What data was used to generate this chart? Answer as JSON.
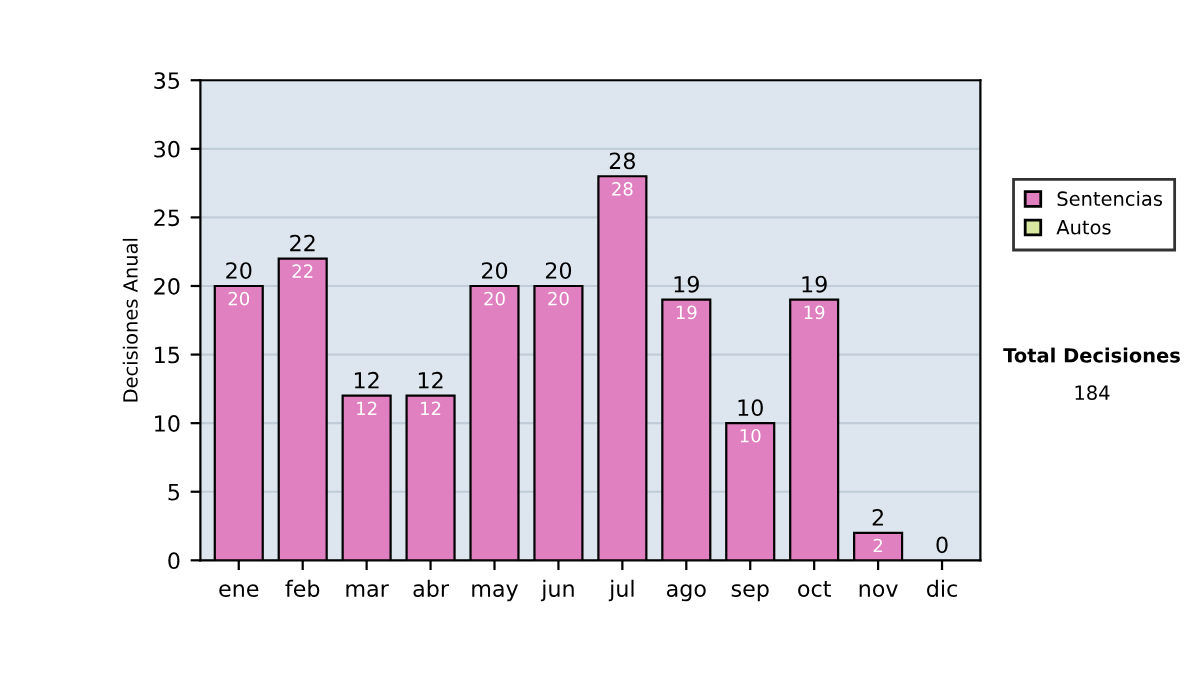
{
  "chart_data": {
    "type": "bar",
    "stacked": true,
    "ylabel": "Decisiones Anual",
    "categories": [
      "ene",
      "feb",
      "mar",
      "abr",
      "may",
      "jun",
      "jul",
      "ago",
      "sep",
      "oct",
      "nov",
      "dic"
    ],
    "series": [
      {
        "name": "Sentencias",
        "color": "#e080c0",
        "values": [
          20,
          22,
          12,
          12,
          20,
          20,
          28,
          19,
          10,
          19,
          2,
          0
        ],
        "value_labels": [
          "20",
          "22",
          "12",
          "12",
          "20",
          "20",
          "28",
          "19",
          "10",
          "19",
          "2",
          null
        ]
      },
      {
        "name": "Autos",
        "color": "#d8e8a0",
        "values": [
          0,
          0,
          0,
          0,
          0,
          0,
          0,
          0,
          0,
          0,
          0,
          0
        ]
      }
    ],
    "totals": [
      "20",
      "22",
      "12",
      "12",
      "20",
      "20",
      "28",
      "19",
      "10",
      "19",
      "2",
      "0"
    ],
    "ylim": [
      0,
      35
    ],
    "yticks": [
      0,
      5,
      10,
      15,
      20,
      25,
      30,
      35
    ],
    "grid": "y",
    "legend": "right",
    "annotations": [
      "Total Decisiones",
      "184"
    ]
  }
}
